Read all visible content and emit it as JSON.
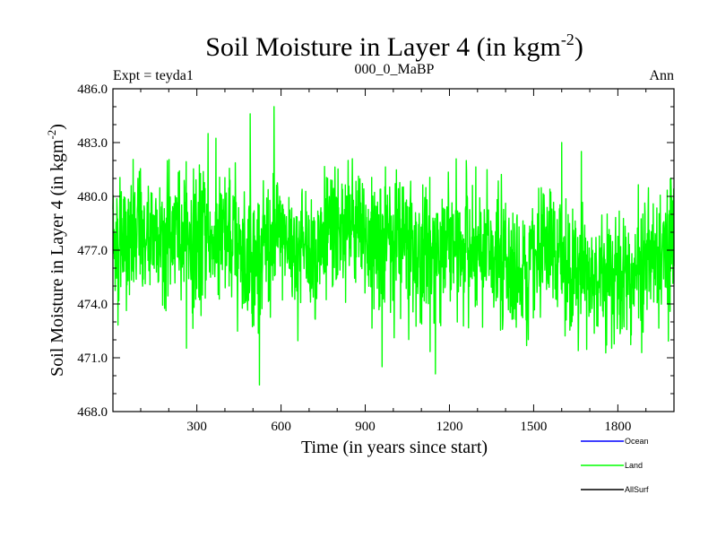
{
  "chart_data": {
    "type": "line",
    "title": "Soil Moisture in Layer 4 (in kgm",
    "title_exp": "-2",
    "title_close": ")",
    "subtitle_left": "Expt = teyda1",
    "subtitle_center": "000_0_MaBP",
    "subtitle_right": "Ann",
    "xlabel": "Time (in years since start)",
    "ylabel": "Soil Moisture in Layer 4 (in kgm",
    "ylabel_exp": "-2",
    "ylabel_close": ")",
    "xlim": [
      1,
      2000
    ],
    "ylim": [
      468.0,
      486.0
    ],
    "xticks": [
      300,
      600,
      900,
      1200,
      1500,
      1800
    ],
    "yticks": [
      "468.0",
      "471.0",
      "474.0",
      "477.0",
      "480.0",
      "483.0",
      "486.0"
    ],
    "yticks_values": [
      468,
      471,
      474,
      477,
      480,
      483,
      486
    ],
    "grid": false,
    "legend_position": "bottom-right",
    "series": [
      {
        "name": "Ocean",
        "color": "#0000ff",
        "values": []
      },
      {
        "name": "Land",
        "color": "#00ff00",
        "mean": 477.0,
        "stddev": 1.9,
        "n_years": 2000,
        "peaks": [
          {
            "x": 340,
            "y": 483.5
          },
          {
            "x": 490,
            "y": 484.6
          },
          {
            "x": 575,
            "y": 485.0
          },
          {
            "x": 960,
            "y": 470.5
          },
          {
            "x": 1150,
            "y": 470.1
          },
          {
            "x": 1600,
            "y": 483.0
          },
          {
            "x": 1670,
            "y": 482.5
          }
        ]
      },
      {
        "name": "AllSurf",
        "color": "#000000",
        "values": []
      }
    ]
  }
}
